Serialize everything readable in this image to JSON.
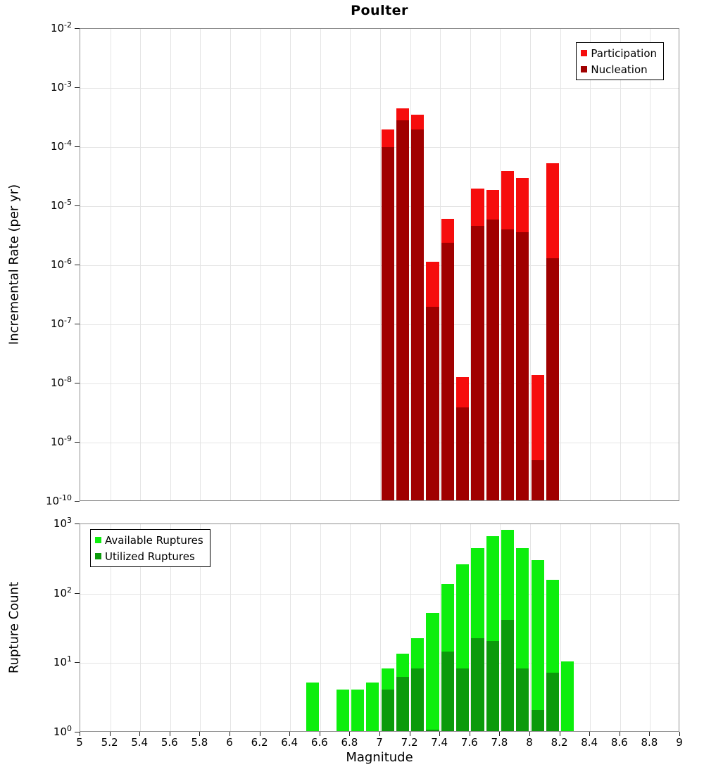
{
  "title": "Poulter",
  "xlabel": "Magnitude",
  "x_tick_labels": [
    "5",
    "5.2",
    "5.4",
    "5.6",
    "5.8",
    "6",
    "6.2",
    "6.4",
    "6.6",
    "6.8",
    "7",
    "7.2",
    "7.4",
    "7.6",
    "7.8",
    "8",
    "8.2",
    "8.4",
    "8.6",
    "8.8",
    "9"
  ],
  "top_chart": {
    "ylabel": "Incremental Rate (per yr)",
    "y_tick_exponents": [
      -2,
      -3,
      -4,
      -5,
      -6,
      -7,
      -8,
      -9,
      -10
    ]
  },
  "bottom_chart": {
    "ylabel": "Rupture Count",
    "y_tick_exponents": [
      3,
      2,
      1,
      0
    ]
  },
  "chart_data": [
    {
      "type": "bar",
      "title": "Poulter",
      "xlabel": "Magnitude",
      "ylabel": "Incremental Rate (per yr)",
      "xlim": [
        5,
        9
      ],
      "ylim_log10": [
        -10,
        -2
      ],
      "bin_width": 0.1,
      "grid": true,
      "legend_position": "top-right",
      "series": [
        {
          "name": "Participation",
          "color": "#f60d0d",
          "mags": [
            7.0,
            7.1,
            7.2,
            7.3,
            7.4,
            7.5,
            7.6,
            7.7,
            7.8,
            7.9,
            8.0,
            8.1
          ],
          "values": [
            0.00019,
            0.00043,
            0.00033,
            1.1e-06,
            5.8e-06,
            1.2e-08,
            1.9e-05,
            1.8e-05,
            3.7e-05,
            2.8e-05,
            1.3e-08,
            5e-05
          ]
        },
        {
          "name": "Nucleation",
          "color": "#a00000",
          "mags": [
            7.0,
            7.1,
            7.2,
            7.3,
            7.4,
            7.5,
            7.6,
            7.7,
            7.8,
            7.9,
            8.0,
            8.1
          ],
          "values": [
            9.5e-05,
            0.00027,
            0.00019,
            1.9e-07,
            2.3e-06,
            3.7e-09,
            4.4e-06,
            5.6e-06,
            3.8e-06,
            3.4e-06,
            4.8e-10,
            1.25e-06
          ]
        }
      ]
    },
    {
      "type": "bar",
      "xlabel": "Magnitude",
      "ylabel": "Rupture Count",
      "xlim": [
        5,
        9
      ],
      "ylim_log10": [
        0,
        3
      ],
      "bin_width": 0.1,
      "grid": true,
      "legend_position": "top-left",
      "series": [
        {
          "name": "Available Ruptures",
          "color": "#0dee0d",
          "mags": [
            6.5,
            6.7,
            6.8,
            6.9,
            7.0,
            7.1,
            7.2,
            7.3,
            7.4,
            7.5,
            7.6,
            7.7,
            7.8,
            7.9,
            8.0,
            8.1,
            8.2
          ],
          "values": [
            5,
            4,
            4,
            5,
            8,
            13,
            22,
            50,
            130,
            250,
            430,
            650,
            790,
            430,
            290,
            150,
            10
          ]
        },
        {
          "name": "Utilized Ruptures",
          "color": "#0b9a0b",
          "mags": [
            6.5,
            6.7,
            6.8,
            6.9,
            7.0,
            7.1,
            7.2,
            7.3,
            7.4,
            7.5,
            7.6,
            7.7,
            7.8,
            7.9,
            8.0,
            8.1,
            8.2
          ],
          "values": [
            0,
            0,
            0,
            0,
            4,
            6,
            8,
            1,
            14,
            8,
            22,
            20,
            40,
            8,
            2,
            7,
            0
          ]
        }
      ]
    }
  ]
}
